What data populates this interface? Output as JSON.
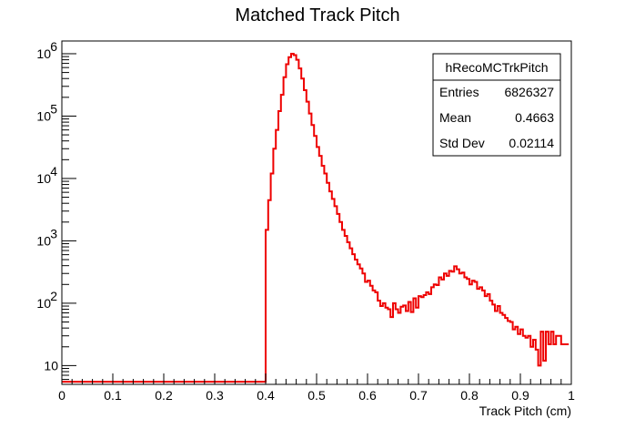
{
  "chart_data": {
    "type": "histogram",
    "title": "Matched Track Pitch",
    "xlabel": "Track Pitch (cm)",
    "ylabel": "",
    "xlim": [
      0,
      1
    ],
    "ylim": [
      5,
      1600000
    ],
    "yscale": "log",
    "grid": false,
    "line_color": "#ee0000",
    "x_ticks": [
      "0",
      "0.1",
      "0.2",
      "0.3",
      "0.4",
      "0.5",
      "0.6",
      "0.7",
      "0.8",
      "0.9",
      "1"
    ],
    "x_tick_values": [
      0,
      0.1,
      0.2,
      0.3,
      0.4,
      0.5,
      0.6,
      0.7,
      0.8,
      0.9,
      1.0
    ],
    "y_ticks": [
      {
        "value": 10,
        "base": "10",
        "exp": ""
      },
      {
        "value": 100,
        "base": "10",
        "exp": "2"
      },
      {
        "value": 1000,
        "base": "10",
        "exp": "3"
      },
      {
        "value": 10000,
        "base": "10",
        "exp": "4"
      },
      {
        "value": 100000,
        "base": "10",
        "exp": "5"
      },
      {
        "value": 1000000,
        "base": "10",
        "exp": "6"
      }
    ],
    "bins": {
      "low": 0,
      "width": 0.005,
      "values": [
        5.5,
        5.5,
        5.5,
        5.5,
        5.5,
        5.5,
        5.5,
        5.5,
        5.5,
        5.5,
        5.5,
        5.5,
        5.5,
        5.5,
        5.5,
        5.5,
        5.5,
        5.5,
        5.5,
        5.5,
        5.5,
        5.5,
        5.5,
        5.5,
        5.5,
        5.5,
        5.5,
        5.5,
        5.5,
        5.5,
        5.5,
        5.5,
        5.5,
        5.5,
        5.5,
        5.5,
        5.5,
        5.5,
        5.5,
        5.5,
        5.5,
        5.5,
        5.5,
        5.5,
        5.5,
        5.5,
        5.5,
        5.5,
        5.5,
        5.5,
        5.5,
        5.5,
        5.5,
        5.5,
        5.5,
        5.5,
        5.5,
        5.5,
        5.5,
        5.5,
        5.5,
        5.5,
        5.5,
        5.5,
        5.5,
        5.5,
        5.5,
        5.5,
        5.5,
        5.5,
        5.5,
        5.5,
        5.5,
        5.5,
        5.5,
        5.5,
        5.5,
        5.5,
        5.5,
        5.5,
        1500,
        4500,
        12000,
        30000,
        60000,
        120000,
        220000,
        420000,
        680000,
        880000,
        1000000,
        950000,
        800000,
        580000,
        400000,
        260000,
        170000,
        110000,
        72000,
        48000,
        32000,
        23000,
        16000,
        12000,
        8500,
        6200,
        4700,
        3600,
        2700,
        2000,
        1500,
        1200,
        950,
        760,
        610,
        500,
        420,
        360,
        300,
        220,
        230,
        190,
        160,
        150,
        110,
        90,
        100,
        85,
        80,
        60,
        100,
        80,
        70,
        88,
        92,
        75,
        105,
        72,
        120,
        85,
        130,
        125,
        135,
        150,
        140,
        180,
        200,
        195,
        260,
        240,
        300,
        275,
        330,
        320,
        390,
        350,
        300,
        310,
        260,
        245,
        200,
        230,
        220,
        170,
        180,
        160,
        130,
        140,
        110,
        95,
        75,
        90,
        70,
        65,
        58,
        52,
        50,
        38,
        42,
        32,
        38,
        30,
        28,
        30,
        20,
        26,
        18,
        10,
        35,
        12,
        35,
        22,
        35,
        22,
        30,
        30,
        22,
        22,
        22
      ]
    },
    "stats": {
      "name": "hRecoMCTrkPitch",
      "rows": [
        {
          "label": "Entries",
          "value": "6826327"
        },
        {
          "label": "Mean",
          "value": "0.4663"
        },
        {
          "label": "Std Dev",
          "value": "0.02114"
        }
      ]
    }
  }
}
